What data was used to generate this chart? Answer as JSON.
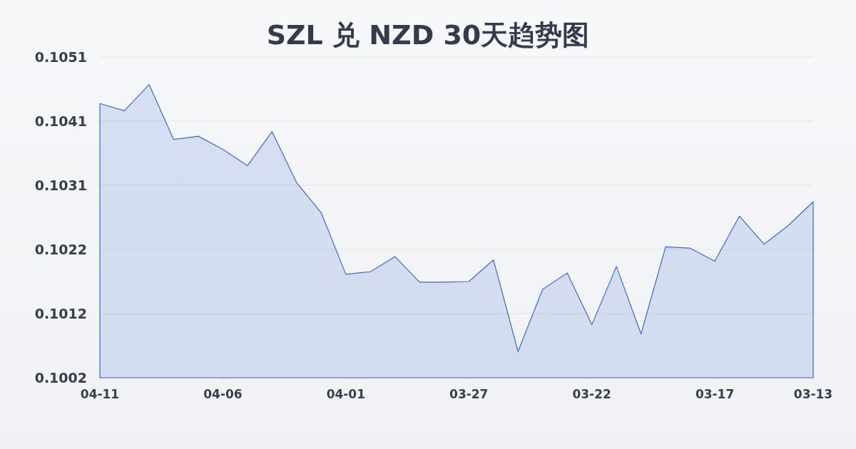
{
  "chart_data": {
    "type": "area",
    "title": "SZL 兑 NZD 30天趋势图",
    "categories": [
      "04-11",
      null,
      null,
      null,
      null,
      "04-06",
      null,
      null,
      null,
      null,
      "04-01",
      null,
      null,
      null,
      null,
      "03-27",
      null,
      null,
      null,
      null,
      "03-22",
      null,
      null,
      null,
      null,
      "03-17",
      null,
      null,
      null,
      "03-13"
    ],
    "values": [
      0.10439,
      0.10428,
      0.10468,
      0.10384,
      0.10389,
      0.10369,
      0.10344,
      0.10396,
      0.10318,
      0.10272,
      0.10178,
      0.10182,
      0.10205,
      0.10166,
      0.10166,
      0.10167,
      0.102,
      0.1006,
      0.10155,
      0.1018,
      0.10101,
      0.1019,
      0.10087,
      0.1022,
      0.10218,
      0.10198,
      0.10267,
      0.10224,
      0.10253,
      0.10289
    ],
    "color": "#3a6bd0",
    "ylim": [
      0.1002,
      0.1051
    ],
    "yticks": [
      0.1002,
      {
        "value": 0.10118,
        "label": "0.1012"
      },
      {
        "value": 0.10216,
        "label": "0.1022"
      },
      {
        "value": 0.10314,
        "label": "0.1031"
      },
      {
        "value": 0.10412,
        "label": "0.1041"
      },
      0.1051
    ],
    "grid": "y"
  }
}
